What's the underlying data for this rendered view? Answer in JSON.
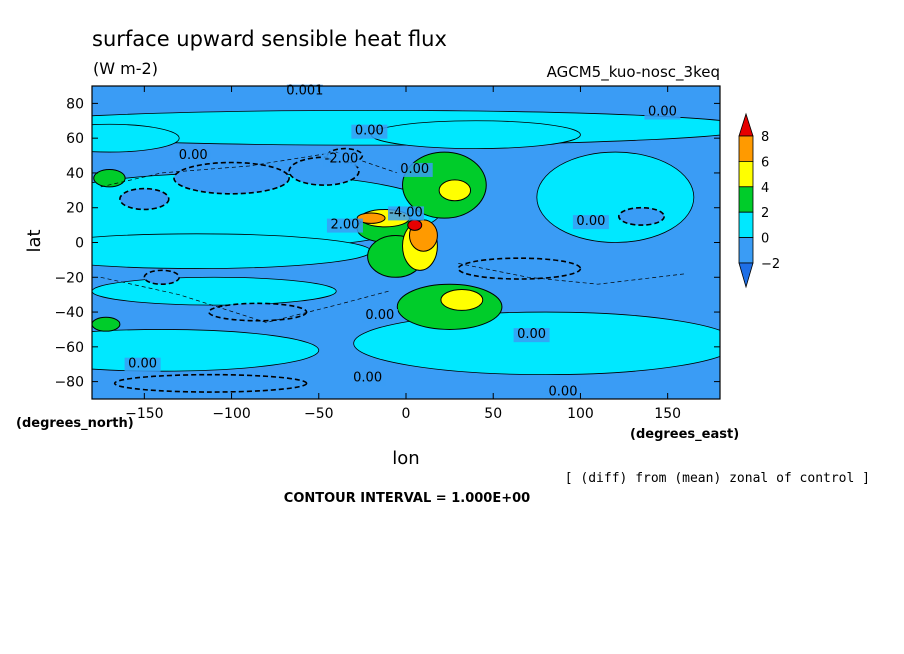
{
  "chart_data": {
    "type": "heatmap",
    "title": "surface upward sensible heat flux",
    "units": "(W m-2)",
    "run_label": "AGCM5_kuo-nosc_3keq",
    "xlabel": "lon",
    "ylabel": "lat",
    "x_units_label": "(degrees_east)",
    "y_units_label": "(degrees_north)",
    "xlim": [
      -180,
      180
    ],
    "ylim": [
      -90,
      90
    ],
    "x_ticks": [
      -150,
      -100,
      -50,
      0,
      50,
      100,
      150
    ],
    "y_ticks": [
      80,
      60,
      40,
      20,
      0,
      -20,
      -40,
      -60,
      -80
    ],
    "colorbar": {
      "levels": [
        -2,
        0,
        2,
        4,
        6,
        8
      ],
      "colors": [
        "#1e6fe6",
        "#3a9cf5",
        "#00e8ff",
        "#00cc2a",
        "#ffff00",
        "#ff9a00",
        "#e60000"
      ]
    },
    "contour_labels": [
      {
        "text": "0.001",
        "lon": -58,
        "lat": 85
      },
      {
        "text": "0.00",
        "lon": 147,
        "lat": 73
      },
      {
        "text": "0.00",
        "lon": -21,
        "lat": 62
      },
      {
        "text": "0.00",
        "lon": -122,
        "lat": 48
      },
      {
        "text": "-2.00",
        "lon": -37,
        "lat": 46
      },
      {
        "text": "0.00",
        "lon": 5,
        "lat": 40
      },
      {
        "text": "-4.00",
        "lon": 0,
        "lat": 15
      },
      {
        "text": "2.00",
        "lon": -35,
        "lat": 8
      },
      {
        "text": "0.00",
        "lon": 106,
        "lat": 10
      },
      {
        "text": "0.00",
        "lon": -15,
        "lat": -44
      },
      {
        "text": "0.00",
        "lon": 72,
        "lat": -55
      },
      {
        "text": "0.00",
        "lon": -151,
        "lat": -72
      },
      {
        "text": "0.00",
        "lon": -22,
        "lat": -80
      },
      {
        "text": "0.00",
        "lon": 90,
        "lat": -88
      }
    ],
    "regions": [
      {
        "level": -2,
        "lon": -100,
        "lat": 37,
        "rx": 33,
        "ry": 9
      },
      {
        "level": -2,
        "lon": -47,
        "lat": 41,
        "rx": 20,
        "ry": 8
      },
      {
        "level": -2,
        "lon": -150,
        "lat": 25,
        "rx": 14,
        "ry": 6
      },
      {
        "level": -2,
        "lon": -35,
        "lat": 50,
        "rx": 10,
        "ry": 4
      },
      {
        "level": -2,
        "lon": 65,
        "lat": -15,
        "rx": 35,
        "ry": 6
      },
      {
        "level": -2,
        "lon": -85,
        "lat": -40,
        "rx": 28,
        "ry": 5
      },
      {
        "level": -2,
        "lon": -140,
        "lat": -20,
        "rx": 10,
        "ry": 4
      },
      {
        "level": -2,
        "lon": 135,
        "lat": 15,
        "rx": 13,
        "ry": 5
      },
      {
        "level": -2,
        "lon": -112,
        "lat": -81,
        "rx": 55,
        "ry": 5
      },
      {
        "level": 2,
        "lon": 22,
        "lat": 33,
        "rx": 24,
        "ry": 19
      },
      {
        "level": 2,
        "lon": -10,
        "lat": 8,
        "rx": 18,
        "ry": 8
      },
      {
        "level": 2,
        "lon": -6,
        "lat": -8,
        "rx": 16,
        "ry": 12
      },
      {
        "level": 2,
        "lon": 25,
        "lat": -37,
        "rx": 30,
        "ry": 13
      },
      {
        "level": 2,
        "lon": -170,
        "lat": 37,
        "rx": 9,
        "ry": 5
      },
      {
        "level": 2,
        "lon": -172,
        "lat": -47,
        "rx": 8,
        "ry": 4
      },
      {
        "level": 4,
        "lon": 28,
        "lat": 30,
        "rx": 9,
        "ry": 6
      },
      {
        "level": 4,
        "lon": 32,
        "lat": -33,
        "rx": 12,
        "ry": 6
      },
      {
        "level": 4,
        "lon": -12,
        "lat": 14,
        "rx": 14,
        "ry": 5
      },
      {
        "level": 4,
        "lon": 8,
        "lat": -2,
        "rx": 10,
        "ry": 14
      },
      {
        "level": 6,
        "lon": 10,
        "lat": 4,
        "rx": 8,
        "ry": 9
      },
      {
        "level": 6,
        "lon": -20,
        "lat": 14,
        "rx": 8,
        "ry": 3
      },
      {
        "level": 8,
        "lon": 5,
        "lat": 10,
        "rx": 4,
        "ry": 3
      }
    ]
  },
  "footer": {
    "note": "[ (diff) from (mean) zonal of control ]",
    "contour_interval": "CONTOUR INTERVAL = 1.000E+00"
  }
}
